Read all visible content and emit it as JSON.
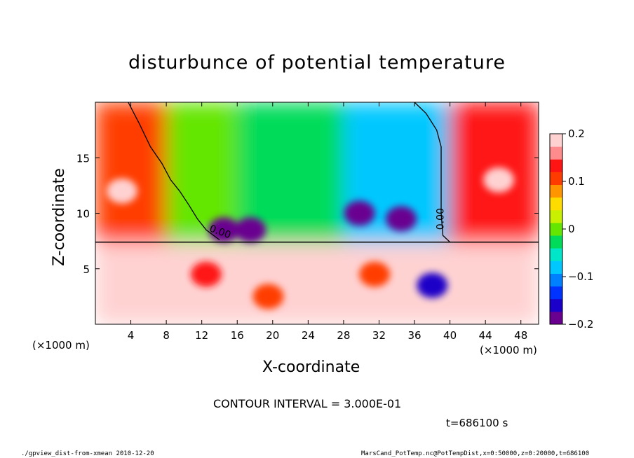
{
  "colors": {
    "palette": [
      "#6a0090",
      "#1a00c8",
      "#0033ff",
      "#0080ff",
      "#00c8ff",
      "#00e6c8",
      "#00dc5a",
      "#64e600",
      "#c8f000",
      "#ffdc00",
      "#ff9600",
      "#ff3c00",
      "#ff1414",
      "#ff8c8c",
      "#ffd2d2"
    ]
  },
  "chart_data": {
    "type": "heatmap",
    "title": "disturbunce of potential temperature",
    "xlabel": "X-coordinate",
    "ylabel": "Z-coordinate",
    "x_unit_left": "(×1000 m)",
    "x_unit_right": "(×1000 m)",
    "xlim": [
      0,
      50
    ],
    "ylim": [
      0,
      20
    ],
    "xticks": [
      4,
      8,
      12,
      16,
      20,
      24,
      28,
      32,
      36,
      40,
      44,
      48
    ],
    "yticks": [
      5,
      10,
      15
    ],
    "colorbar": {
      "min": -0.2,
      "max": 0.2,
      "tick_values": [
        0.2,
        0.1,
        0,
        -0.1,
        -0.2
      ],
      "tick_labels": [
        "0.2",
        "0.1",
        "0",
        "−0.1",
        "−0.2"
      ]
    },
    "contour_interval": "CONTOUR INTERVAL = 3.000E-01",
    "contour_label": "0.00",
    "contour_zero_lines": [
      {
        "points": [
          [
            3.7,
            20
          ],
          [
            5,
            18
          ],
          [
            6.2,
            16
          ],
          [
            7.5,
            14.5
          ],
          [
            8.5,
            13
          ],
          [
            9.5,
            12
          ],
          [
            10.5,
            10.8
          ],
          [
            11.5,
            9.5
          ],
          [
            12.5,
            8.5
          ],
          [
            14,
            7.6
          ]
        ]
      },
      {
        "points": [
          [
            36,
            20
          ],
          [
            37.3,
            19
          ],
          [
            38.5,
            17.5
          ],
          [
            39,
            16
          ],
          [
            39,
            13
          ],
          [
            39,
            10
          ],
          [
            39.2,
            8
          ],
          [
            40,
            7.4
          ]
        ]
      }
    ],
    "regions": [
      {
        "x0": 0,
        "x1": 8,
        "z0": 7.4,
        "z1": 20,
        "value": 0.12
      },
      {
        "x0": 8,
        "x1": 16,
        "z0": 7.4,
        "z1": 20,
        "value": 0.0
      },
      {
        "x0": 16,
        "x1": 28,
        "z0": 7.4,
        "z1": 20,
        "value": -0.02
      },
      {
        "x0": 28,
        "x1": 40,
        "z0": 7.4,
        "z1": 20,
        "value": -0.08
      },
      {
        "x0": 40,
        "x1": 50,
        "z0": 7.4,
        "z1": 20,
        "value": 0.14
      },
      {
        "x0": 0,
        "x1": 50,
        "z0": 0,
        "z1": 7.4,
        "value": 0.22
      }
    ],
    "features": [
      {
        "x": 14.5,
        "z": 8.5,
        "value": -0.2
      },
      {
        "x": 17.5,
        "z": 8.5,
        "value": -0.18
      },
      {
        "x": 29.8,
        "z": 10,
        "value": -0.2
      },
      {
        "x": 34.5,
        "z": 9.5,
        "value": -0.18
      },
      {
        "x": 45.5,
        "z": 13,
        "value": 0.2
      },
      {
        "x": 3,
        "z": 12,
        "value": 0.18
      },
      {
        "x": 12.5,
        "z": 4.5,
        "value": 0.14
      },
      {
        "x": 19.5,
        "z": 2.5,
        "value": 0.12
      },
      {
        "x": 31.5,
        "z": 4.5,
        "value": 0.1
      },
      {
        "x": 38,
        "z": 3.5,
        "value": -0.15
      }
    ]
  },
  "footer": {
    "left": "./gpview_dist-from-xmean  2010-12-20",
    "right": "MarsCand_PotTemp.nc@PotTempDist,x=0:50000,z=0:20000,t=686100",
    "time": "t=686100 s"
  }
}
